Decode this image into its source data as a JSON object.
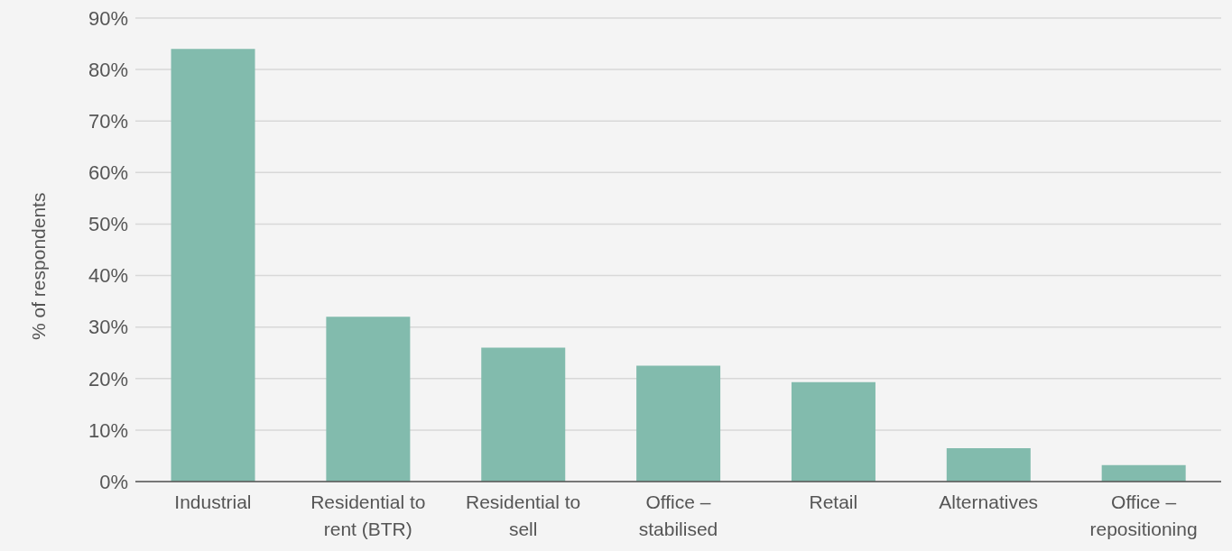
{
  "chart_data": {
    "type": "bar",
    "ylabel": "% of respondents",
    "categories": [
      "Industrial",
      "Residential to rent (BTR)",
      "Residential to sell",
      "Office – stabilised",
      "Retail",
      "Alternatives",
      "Office – repositioning"
    ],
    "values": [
      84,
      32,
      26,
      22.5,
      19.3,
      6.5,
      3.2
    ],
    "color": "#82bbad",
    "ylim": [
      0,
      90
    ],
    "yticks": [
      {
        "value": 0,
        "label": "0%"
      },
      {
        "value": 10,
        "label": "10%"
      },
      {
        "value": 20,
        "label": "20%"
      },
      {
        "value": 30,
        "label": "30%"
      },
      {
        "value": 40,
        "label": "40%"
      },
      {
        "value": 50,
        "label": "50%"
      },
      {
        "value": 60,
        "label": "60%"
      },
      {
        "value": 70,
        "label": "70%"
      },
      {
        "value": 80,
        "label": "80%"
      },
      {
        "value": 90,
        "label": "90%"
      }
    ],
    "grid": "y"
  }
}
